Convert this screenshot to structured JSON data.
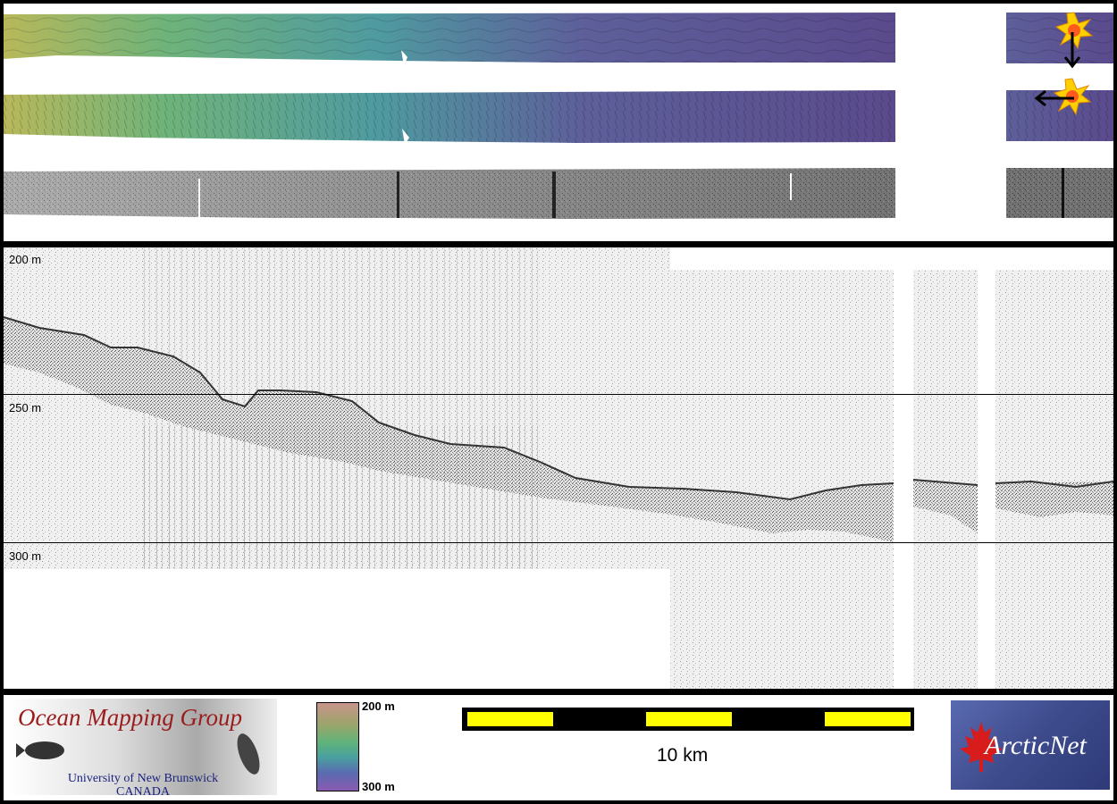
{
  "profile": {
    "depth_labels": [
      "200 m",
      "250 m",
      "300 m"
    ]
  },
  "colorbar": {
    "top_label": "200 m",
    "bottom_label": "300 m"
  },
  "scale_bar": {
    "label": "10 km",
    "colors": {
      "fill": "#ffff00",
      "frame": "#000000"
    }
  },
  "logos": {
    "omg": {
      "title": "Ocean Mapping Group",
      "line1": "University of New Brunswick",
      "line2": "CANADA"
    },
    "arcticnet": {
      "text": "ArcticNet"
    }
  },
  "colors": {
    "frame": "#000000",
    "bathy_shallow": "#b8b85a",
    "bathy_mid": "#5aa88e",
    "bathy_deep": "#5a4a8c",
    "sidescan": "#8a8a8a",
    "echogram_bg": "#f0f0f0",
    "sun": "#ffd000",
    "logo_red": "#9b1c1c",
    "logo_blue": "#1a237e",
    "arctic_bg": "#3d4b8c"
  },
  "icons": [
    "sun-icon",
    "arrow-down-icon",
    "arrow-left-icon",
    "maple-leaf-icon"
  ]
}
